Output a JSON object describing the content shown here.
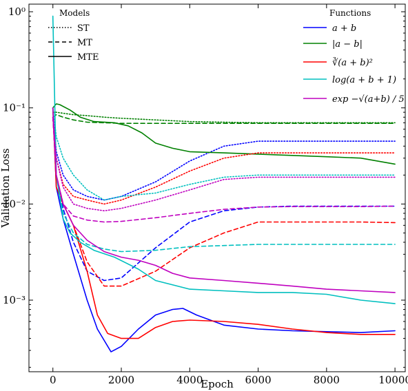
{
  "chart_data": {
    "type": "line",
    "xlabel": "Epoch",
    "ylabel": "Validation Loss",
    "xlim": [
      -700,
      10300
    ],
    "ylim": [
      0.00018,
      1.2
    ],
    "yscale": "log",
    "x_ticks": [
      0,
      2000,
      4000,
      6000,
      8000,
      10000
    ],
    "x_tick_labels": [
      "0",
      "2000",
      "4000",
      "6000",
      "8000",
      "10000"
    ],
    "y_ticks": [
      0.001,
      0.01,
      0.1,
      1
    ],
    "y_tick_labels": [
      "10⁻³",
      "10⁻²",
      "10⁻¹",
      "10⁰"
    ],
    "legend_styles": {
      "title": "Models",
      "placement": "top-left",
      "entries": [
        {
          "label": "ST",
          "dash": "dotted"
        },
        {
          "label": "MT",
          "dash": "dashed"
        },
        {
          "label": "MTE",
          "dash": "solid"
        }
      ]
    },
    "legend_functions": {
      "title": "Functions",
      "placement": "top-right",
      "entries": [
        {
          "label": "a + b",
          "color": "#0000ff"
        },
        {
          "label": "|a − b|",
          "color": "#008000"
        },
        {
          "label": "∛(a + b)²",
          "color": "#ff0000"
        },
        {
          "label": "log(a + b + 1)",
          "color": "#00bfbf"
        },
        {
          "label": "exp −√(a+b) / 5",
          "color": "#bf00bf"
        }
      ]
    },
    "series": [
      {
        "function": "a + b",
        "model": "ST",
        "color": "#0000ff",
        "dash": "dotted",
        "x": [
          0,
          100,
          300,
          600,
          1000,
          1500,
          2000,
          3000,
          4000,
          5000,
          6000,
          7000,
          8000,
          9000,
          10000
        ],
        "y": [
          0.1,
          0.035,
          0.02,
          0.014,
          0.012,
          0.011,
          0.012,
          0.017,
          0.028,
          0.04,
          0.045,
          0.045,
          0.045,
          0.045,
          0.045
        ]
      },
      {
        "function": "a + b",
        "model": "MT",
        "color": "#0000ff",
        "dash": "dashed",
        "x": [
          0,
          100,
          300,
          600,
          1000,
          1500,
          2000,
          3000,
          4000,
          5000,
          6000,
          7000,
          8000,
          9000,
          10000
        ],
        "y": [
          0.1,
          0.02,
          0.009,
          0.004,
          0.002,
          0.0016,
          0.0017,
          0.0035,
          0.0065,
          0.0085,
          0.0093,
          0.0095,
          0.0095,
          0.0095,
          0.0095
        ]
      },
      {
        "function": "a + b",
        "model": "MTE",
        "color": "#0000ff",
        "dash": "solid",
        "x": [
          0,
          100,
          300,
          600,
          1000,
          1300,
          1700,
          2000,
          2500,
          3000,
          3500,
          3800,
          4200,
          5000,
          6000,
          7000,
          8000,
          9000,
          10000
        ],
        "y": [
          0.1,
          0.015,
          0.007,
          0.003,
          0.001,
          0.0005,
          0.00029,
          0.00033,
          0.0005,
          0.0007,
          0.0008,
          0.00082,
          0.0007,
          0.00055,
          0.0005,
          0.00048,
          0.00047,
          0.00046,
          0.00048
        ]
      },
      {
        "function": "|a − b|",
        "model": "ST",
        "color": "#008000",
        "dash": "dotted",
        "x": [
          0,
          100,
          300,
          600,
          1000,
          1500,
          2000,
          3000,
          4000,
          5000,
          6000,
          7000,
          8000,
          9000,
          10000
        ],
        "y": [
          0.09,
          0.09,
          0.088,
          0.085,
          0.083,
          0.08,
          0.078,
          0.075,
          0.072,
          0.071,
          0.07,
          0.07,
          0.07,
          0.07,
          0.07
        ]
      },
      {
        "function": "|a − b|",
        "model": "MT",
        "color": "#008000",
        "dash": "dashed",
        "x": [
          0,
          100,
          300,
          600,
          1000,
          1500,
          2000,
          3000,
          4000,
          5000,
          6000,
          7000,
          8000,
          9000,
          10000
        ],
        "y": [
          0.08,
          0.085,
          0.08,
          0.075,
          0.071,
          0.07,
          0.069,
          0.069,
          0.069,
          0.069,
          0.069,
          0.069,
          0.069,
          0.069,
          0.069
        ]
      },
      {
        "function": "|a − b|",
        "model": "MTE",
        "color": "#008000",
        "dash": "solid",
        "x": [
          0,
          100,
          200,
          500,
          800,
          1200,
          1800,
          2200,
          2600,
          3000,
          3500,
          4000,
          5000,
          6000,
          7000,
          8000,
          9000,
          10000
        ],
        "y": [
          0.1,
          0.11,
          0.108,
          0.095,
          0.08,
          0.072,
          0.07,
          0.065,
          0.055,
          0.043,
          0.038,
          0.035,
          0.034,
          0.033,
          0.032,
          0.031,
          0.03,
          0.026
        ]
      },
      {
        "function": "∛(a + b)²",
        "model": "ST",
        "color": "#ff0000",
        "dash": "dotted",
        "x": [
          0,
          100,
          300,
          600,
          1000,
          1500,
          2000,
          3000,
          4000,
          5000,
          6000,
          7000,
          8000,
          9000,
          10000
        ],
        "y": [
          0.08,
          0.03,
          0.016,
          0.012,
          0.011,
          0.01,
          0.011,
          0.015,
          0.022,
          0.03,
          0.034,
          0.034,
          0.034,
          0.034,
          0.034
        ]
      },
      {
        "function": "∛(a + b)²",
        "model": "MT",
        "color": "#ff0000",
        "dash": "dashed",
        "x": [
          0,
          100,
          300,
          600,
          1000,
          1500,
          2000,
          3000,
          4000,
          5000,
          6000,
          7000,
          8000,
          9000,
          10000
        ],
        "y": [
          0.08,
          0.02,
          0.01,
          0.006,
          0.0025,
          0.0014,
          0.0014,
          0.002,
          0.0035,
          0.005,
          0.0065,
          0.0065,
          0.0065,
          0.0065,
          0.0064
        ]
      },
      {
        "function": "∛(a + b)²",
        "model": "MTE",
        "color": "#ff0000",
        "dash": "solid",
        "x": [
          0,
          100,
          300,
          600,
          1000,
          1300,
          1600,
          2000,
          2500,
          3000,
          3500,
          4000,
          5000,
          6000,
          7000,
          8000,
          9000,
          10000
        ],
        "y": [
          0.1,
          0.015,
          0.01,
          0.006,
          0.002,
          0.0007,
          0.00045,
          0.0004,
          0.0004,
          0.00052,
          0.0006,
          0.00062,
          0.0006,
          0.00056,
          0.0005,
          0.00046,
          0.00044,
          0.00044
        ]
      },
      {
        "function": "log(a + b + 1)",
        "model": "ST",
        "color": "#00bfbf",
        "dash": "dotted",
        "x": [
          0,
          100,
          300,
          600,
          1000,
          1500,
          2000,
          3000,
          4000,
          5000,
          6000,
          7000,
          8000,
          9000,
          10000
        ],
        "y": [
          0.1,
          0.05,
          0.03,
          0.02,
          0.014,
          0.011,
          0.012,
          0.013,
          0.016,
          0.019,
          0.02,
          0.02,
          0.02,
          0.02,
          0.02
        ]
      },
      {
        "function": "log(a + b + 1)",
        "model": "MT",
        "color": "#00bfbf",
        "dash": "dashed",
        "x": [
          0,
          100,
          300,
          600,
          1000,
          1500,
          2000,
          3000,
          4000,
          5000,
          6000,
          7000,
          8000,
          9000,
          10000
        ],
        "y": [
          0.1,
          0.02,
          0.008,
          0.005,
          0.0038,
          0.0034,
          0.0032,
          0.0033,
          0.0036,
          0.0037,
          0.0038,
          0.0038,
          0.0038,
          0.0038,
          0.0038
        ]
      },
      {
        "function": "log(a + b + 1)",
        "model": "MTE",
        "color": "#00bfbf",
        "dash": "solid",
        "x": [
          0,
          100,
          300,
          500,
          800,
          1200,
          1800,
          2500,
          3000,
          4000,
          5000,
          6000,
          7000,
          8000,
          9000,
          10000
        ],
        "y": [
          0.9,
          0.02,
          0.007,
          0.005,
          0.004,
          0.0033,
          0.0028,
          0.0021,
          0.0016,
          0.0013,
          0.00125,
          0.0012,
          0.0012,
          0.00115,
          0.001,
          0.00092
        ]
      },
      {
        "function": "exp −√(a+b) / 5",
        "model": "ST",
        "color": "#bf00bf",
        "dash": "dotted",
        "x": [
          0,
          100,
          300,
          600,
          1000,
          1500,
          2000,
          3000,
          4000,
          5000,
          6000,
          7000,
          8000,
          9000,
          10000
        ],
        "y": [
          0.08,
          0.03,
          0.015,
          0.01,
          0.009,
          0.0085,
          0.009,
          0.011,
          0.014,
          0.018,
          0.019,
          0.019,
          0.019,
          0.019,
          0.019
        ]
      },
      {
        "function": "exp −√(a+b) / 5",
        "model": "MT",
        "color": "#bf00bf",
        "dash": "dashed",
        "x": [
          0,
          100,
          300,
          600,
          1000,
          1500,
          2000,
          3000,
          4000,
          5000,
          6000,
          7000,
          8000,
          9000,
          10000
        ],
        "y": [
          0.08,
          0.02,
          0.01,
          0.0075,
          0.0068,
          0.0065,
          0.0066,
          0.0072,
          0.008,
          0.0088,
          0.0093,
          0.0094,
          0.0094,
          0.0094,
          0.0095
        ]
      },
      {
        "function": "exp −√(a+b) / 5",
        "model": "MTE",
        "color": "#bf00bf",
        "dash": "solid",
        "x": [
          0,
          100,
          300,
          600,
          1000,
          1500,
          2000,
          2500,
          3000,
          3500,
          4000,
          5000,
          6000,
          7000,
          8000,
          9000,
          10000
        ],
        "y": [
          0.1,
          0.02,
          0.01,
          0.006,
          0.0042,
          0.0032,
          0.0028,
          0.0026,
          0.0023,
          0.0019,
          0.0017,
          0.0016,
          0.0015,
          0.0014,
          0.0013,
          0.00125,
          0.0012
        ]
      }
    ]
  }
}
